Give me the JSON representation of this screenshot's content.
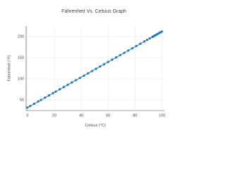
{
  "chart_data": {
    "type": "line",
    "title": "Fahrenheit Vs. Celsius Graph",
    "x_label": "Celsius (°C)",
    "y_label": "Fahrenheit (°F)",
    "x": [
      0,
      2,
      5,
      8,
      10,
      13,
      16,
      19,
      21,
      24,
      27,
      30,
      33,
      36,
      39,
      42,
      45,
      48,
      51,
      54,
      57,
      60,
      63,
      66,
      69,
      72,
      75,
      78,
      81,
      84,
      87,
      89,
      91,
      93,
      94,
      95,
      96,
      97,
      98,
      99,
      100
    ],
    "series": [
      {
        "color": "#1f77b4",
        "values": [
          32,
          35.6,
          41,
          46.4,
          50,
          55.4,
          60.8,
          66.2,
          69.8,
          75.2,
          80.6,
          86,
          91.4,
          96.8,
          102.2,
          107.6,
          113,
          118.4,
          123.8,
          129.2,
          134.6,
          140,
          145.4,
          150.8,
          156.2,
          161.6,
          167,
          172.4,
          177.8,
          183.2,
          188.6,
          192.2,
          195.8,
          199.4,
          201.2,
          203,
          204.8,
          206.6,
          208.4,
          210.2,
          212
        ]
      }
    ],
    "xlim": [
      -1,
      102
    ],
    "xticks": [
      0,
      20,
      40,
      60,
      80,
      100
    ],
    "ylim": [
      25,
      225
    ],
    "yticks": [
      50,
      100,
      150,
      200
    ],
    "grid": true
  }
}
